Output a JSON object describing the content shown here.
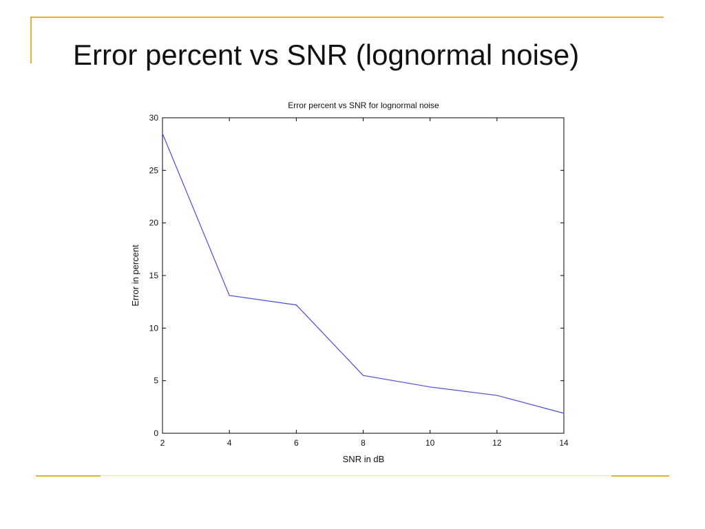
{
  "slide": {
    "title": "Error percent vs SNR (lognormal noise)",
    "accent_color": "#e0b43c"
  },
  "chart_data": {
    "type": "line",
    "title": "Error percent vs SNR for lognormal noise",
    "xlabel": "SNR in dB",
    "ylabel": "Error in percent",
    "xlim": [
      2,
      14
    ],
    "ylim": [
      0,
      30
    ],
    "xticks": [
      2,
      4,
      6,
      8,
      10,
      12,
      14
    ],
    "yticks": [
      0,
      5,
      10,
      15,
      20,
      25,
      30
    ],
    "grid": false,
    "series": [
      {
        "color": "#4a4adf",
        "x": [
          2,
          4,
          6,
          8,
          10,
          12,
          14
        ],
        "y": [
          28.5,
          13.1,
          12.2,
          5.5,
          4.4,
          3.6,
          1.9
        ]
      }
    ]
  }
}
